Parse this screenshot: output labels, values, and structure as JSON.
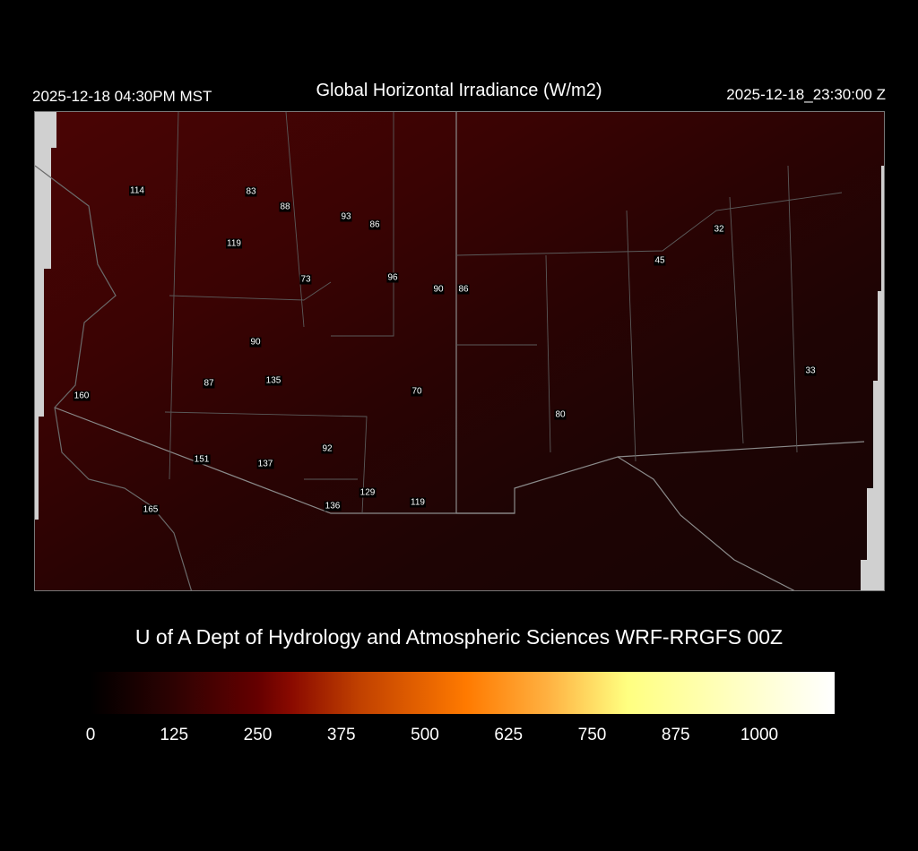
{
  "header": {
    "title": "Global Horizontal Irradiance (W/m2)",
    "local_time": "2025-12-18 04:30PM MST",
    "utc_time": "2025-12-18_23:30:00 Z"
  },
  "map": {
    "station_values": [
      "114",
      "83",
      "88",
      "93",
      "86",
      "119",
      "73",
      "96",
      "90",
      "86",
      "90",
      "135",
      "87",
      "160",
      "70",
      "151",
      "137",
      "92",
      "129",
      "136",
      "119",
      "165",
      "45",
      "32",
      "33",
      "80"
    ],
    "colors": {
      "no_data": "#d0d0d0",
      "border": "#8a8a8a",
      "label_bg": "#000000"
    }
  },
  "credit": "U of A Dept of Hydrology and Atmospheric Sciences WRF-RRGFS 00Z",
  "colorbar": {
    "ticks": [
      "0",
      "125",
      "250",
      "375",
      "500",
      "625",
      "750",
      "875",
      "1000"
    ],
    "stops": [
      {
        "value": 0,
        "color": "#000000"
      },
      {
        "value": 125,
        "color": "#2e0202"
      },
      {
        "value": 250,
        "color": "#650000"
      },
      {
        "value": 300,
        "color": "#8a0a00"
      },
      {
        "value": 400,
        "color": "#c04000"
      },
      {
        "value": 560,
        "color": "#ff7a00"
      },
      {
        "value": 680,
        "color": "#ffb040"
      },
      {
        "value": 800,
        "color": "#ffff80"
      },
      {
        "value": 1110,
        "color": "#ffffff"
      }
    ]
  }
}
